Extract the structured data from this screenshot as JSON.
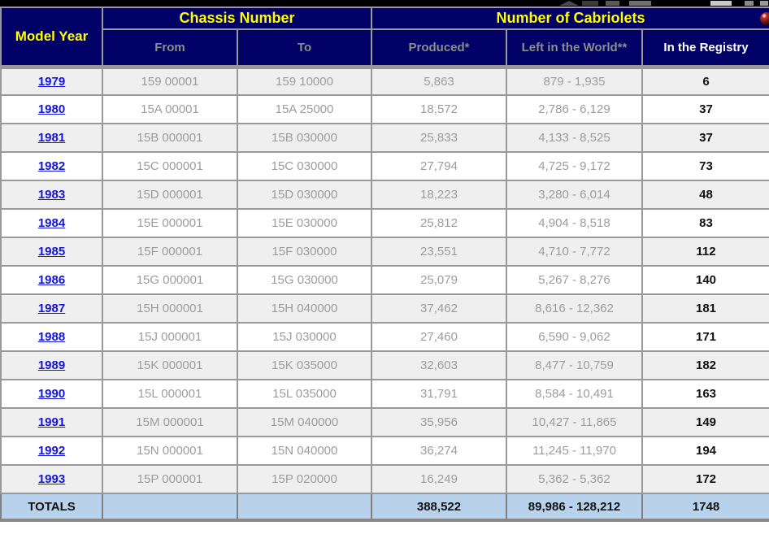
{
  "status_bar": {
    "description": "partially cut-off black system bar with icon fragments"
  },
  "colors": {
    "header_bg": "#000067",
    "header_yellow": "#ffff00",
    "subheader_gray": "#8d8d8d",
    "border_gray": "#999999",
    "row_alt_bg": "#efefef",
    "totals_bg": "#b9d2ec",
    "link_blue": "#1414e0"
  },
  "table": {
    "headers": {
      "model_year": "Model Year",
      "chassis_number": "Chassis Number",
      "number_of_cabriolets": "Number of Cabriolets",
      "from": "From",
      "to": "To",
      "produced": "Produced*",
      "left_in_world": "Left in the World**",
      "in_registry": "In the Registry"
    },
    "rows": [
      {
        "year": "1979",
        "from": "159 00001",
        "to": "159 10000",
        "produced": "5,863",
        "left": "879 - 1,935",
        "registry": "6"
      },
      {
        "year": "1980",
        "from": "15A 00001",
        "to": "15A 25000",
        "produced": "18,572",
        "left": "2,786 - 6,129",
        "registry": "37"
      },
      {
        "year": "1981",
        "from": "15B 000001",
        "to": "15B 030000",
        "produced": "25,833",
        "left": "4,133 - 8,525",
        "registry": "37"
      },
      {
        "year": "1982",
        "from": "15C 000001",
        "to": "15C 030000",
        "produced": "27,794",
        "left": "4,725 - 9,172",
        "registry": "73"
      },
      {
        "year": "1983",
        "from": "15D 000001",
        "to": "15D 030000",
        "produced": "18,223",
        "left": "3,280 - 6,014",
        "registry": "48"
      },
      {
        "year": "1984",
        "from": "15E 000001",
        "to": "15E 030000",
        "produced": "25,812",
        "left": "4,904 - 8,518",
        "registry": "83"
      },
      {
        "year": "1985",
        "from": "15F 000001",
        "to": "15F 030000",
        "produced": "23,551",
        "left": "4,710 - 7,772",
        "registry": "112"
      },
      {
        "year": "1986",
        "from": "15G 000001",
        "to": "15G 030000",
        "produced": "25,079",
        "left": "5,267 - 8,276",
        "registry": "140"
      },
      {
        "year": "1987",
        "from": "15H 000001",
        "to": "15H 040000",
        "produced": "37,462",
        "left": "8,616 - 12,362",
        "registry": "181"
      },
      {
        "year": "1988",
        "from": "15J 000001",
        "to": "15J 030000",
        "produced": "27,460",
        "left": "6,590 - 9,062",
        "registry": "171"
      },
      {
        "year": "1989",
        "from": "15K 000001",
        "to": "15K 035000",
        "produced": "32,603",
        "left": "8,477 - 10,759",
        "registry": "182"
      },
      {
        "year": "1990",
        "from": "15L 000001",
        "to": "15L 035000",
        "produced": "31,791",
        "left": "8,584 - 10,491",
        "registry": "163"
      },
      {
        "year": "1991",
        "from": "15M 000001",
        "to": "15M 040000",
        "produced": "35,956",
        "left": "10,427 - 11,865",
        "registry": "149"
      },
      {
        "year": "1992",
        "from": "15N 000001",
        "to": "15N 040000",
        "produced": "36,274",
        "left": "11,245 - 11,970",
        "registry": "194"
      },
      {
        "year": "1993",
        "from": "15P 000001",
        "to": "15P 020000",
        "produced": "16,249",
        "left": "5,362 - 5,362",
        "registry": "172"
      }
    ],
    "totals": {
      "label": "TOTALS",
      "from": "",
      "to": "",
      "produced": "388,522",
      "left": "89,986 - 128,212",
      "registry": "1748"
    }
  }
}
